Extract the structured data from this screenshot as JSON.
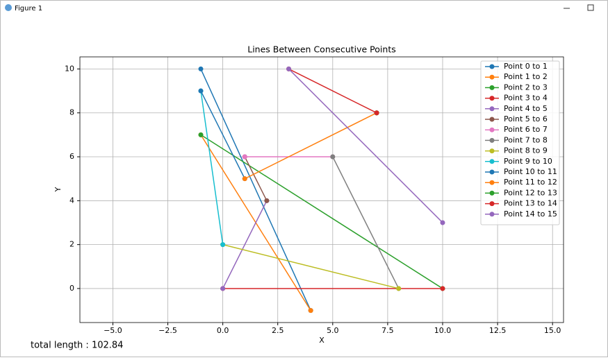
{
  "window": {
    "title": "Figure 1"
  },
  "chart_data": {
    "type": "line",
    "title": "Lines Between Consecutive Points",
    "x_label": "X",
    "y_label": "Y",
    "xlim": [
      -6.5,
      15.5
    ],
    "ylim": [
      -1.55,
      10.55
    ],
    "xticks": [
      {
        "value": -5,
        "label": "−5.0"
      },
      {
        "value": -2.5,
        "label": "−2.5"
      },
      {
        "value": 0,
        "label": "0.0"
      },
      {
        "value": 2.5,
        "label": "2.5"
      },
      {
        "value": 5,
        "label": "5.0"
      },
      {
        "value": 7.5,
        "label": "7.5"
      },
      {
        "value": 10,
        "label": "10.0"
      },
      {
        "value": 12.5,
        "label": "12.5"
      },
      {
        "value": 15,
        "label": "15.0"
      }
    ],
    "yticks": [
      0,
      2,
      4,
      6,
      8,
      10
    ],
    "grid": true,
    "legend": "upper right",
    "series": [
      {
        "name": "Point 0 to 1",
        "color": "#1f77b4",
        "x": [
          -1,
          4
        ],
        "values": [
          10,
          -1
        ]
      },
      {
        "name": "Point 1 to 2",
        "color": "#ff7f0e",
        "x": [
          4,
          -1
        ],
        "values": [
          -1,
          7
        ]
      },
      {
        "name": "Point 2 to 3",
        "color": "#2ca02c",
        "x": [
          -1,
          10
        ],
        "values": [
          7,
          0
        ]
      },
      {
        "name": "Point 3 to 4",
        "color": "#d62728",
        "x": [
          10,
          0
        ],
        "values": [
          0,
          0
        ]
      },
      {
        "name": "Point 4 to 5",
        "color": "#9467bd",
        "x": [
          0,
          2
        ],
        "values": [
          0,
          4
        ]
      },
      {
        "name": "Point 5 to 6",
        "color": "#8c564b",
        "x": [
          2,
          1
        ],
        "values": [
          4,
          6
        ]
      },
      {
        "name": "Point 6 to 7",
        "color": "#e377c2",
        "x": [
          1,
          5
        ],
        "values": [
          6,
          6
        ]
      },
      {
        "name": "Point 7 to 8",
        "color": "#7f7f7f",
        "x": [
          5,
          8
        ],
        "values": [
          6,
          0
        ]
      },
      {
        "name": "Point 8 to 9",
        "color": "#bcbd22",
        "x": [
          8,
          0
        ],
        "values": [
          0,
          2
        ]
      },
      {
        "name": "Point 9 to 10",
        "color": "#17becf",
        "x": [
          0,
          -1
        ],
        "values": [
          2,
          9
        ]
      },
      {
        "name": "Point 10 to 11",
        "color": "#1f77b4",
        "x": [
          -1,
          1
        ],
        "values": [
          9,
          5
        ]
      },
      {
        "name": "Point 11 to 12",
        "color": "#ff7f0e",
        "x": [
          1,
          7
        ],
        "values": [
          5,
          8
        ]
      },
      {
        "name": "Point 12 to 13",
        "color": "#2ca02c",
        "x": [
          7,
          7
        ],
        "values": [
          8,
          8
        ]
      },
      {
        "name": "Point 13 to 14",
        "color": "#d62728",
        "x": [
          7,
          3
        ],
        "values": [
          8,
          10
        ]
      },
      {
        "name": "Point 14 to 15",
        "color": "#9467bd",
        "x": [
          3,
          10
        ],
        "values": [
          10,
          3
        ]
      }
    ]
  },
  "annotation": "total length : 102.84"
}
